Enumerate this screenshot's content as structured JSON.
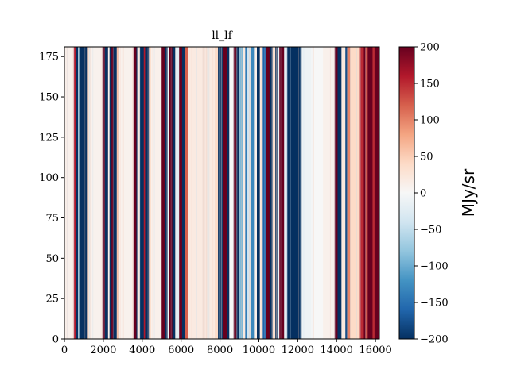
{
  "chart_data": {
    "type": "heatmap",
    "title": "ll_lf",
    "xlabel": "",
    "ylabel": "",
    "xlim": [
      0,
      16200
    ],
    "ylim": [
      0,
      181
    ],
    "x_ticks": [
      0,
      2000,
      4000,
      6000,
      8000,
      10000,
      12000,
      14000,
      16000
    ],
    "x_tick_labels": [
      "0",
      "2000",
      "4000",
      "6000",
      "8000",
      "10000",
      "12000",
      "14000",
      "16000"
    ],
    "y_ticks": [
      0,
      25,
      50,
      75,
      100,
      125,
      150,
      175
    ],
    "y_tick_labels": [
      "0",
      "25",
      "50",
      "75",
      "100",
      "125",
      "150",
      "175"
    ],
    "colormap": "RdBu_r",
    "colormap_stops": [
      "#053061",
      "#2166ac",
      "#4393c3",
      "#92c5de",
      "#d1e5f0",
      "#f7f7f7",
      "#fddbc7",
      "#f4a582",
      "#d6604d",
      "#b2182b",
      "#67001f"
    ],
    "colorbar": {
      "label": "MJy/sr",
      "range": [
        -200,
        200
      ],
      "ticks": [
        -200,
        -150,
        -100,
        -50,
        0,
        50,
        100,
        150,
        200
      ],
      "tick_labels": [
        "−200",
        "−150",
        "−100",
        "−50",
        "0",
        "50",
        "100",
        "150",
        "200"
      ]
    },
    "column_bands": [
      {
        "x": [
          0,
          480
        ],
        "value": 10
      },
      {
        "x": [
          480,
          590
        ],
        "value": 160
      },
      {
        "x": [
          590,
          700
        ],
        "value": -200
      },
      {
        "x": [
          700,
          760
        ],
        "value": -60
      },
      {
        "x": [
          760,
          1200
        ],
        "value": -200
      },
      {
        "x": [
          1200,
          1280
        ],
        "value": 40
      },
      {
        "x": [
          1280,
          1950
        ],
        "value": 8
      },
      {
        "x": [
          1950,
          2080
        ],
        "value": 200
      },
      {
        "x": [
          2080,
          2250
        ],
        "value": -200
      },
      {
        "x": [
          2250,
          2320
        ],
        "value": 10
      },
      {
        "x": [
          2320,
          2420
        ],
        "value": -200
      },
      {
        "x": [
          2420,
          2520
        ],
        "value": 200
      },
      {
        "x": [
          2520,
          2700
        ],
        "value": -200
      },
      {
        "x": [
          2700,
          2800
        ],
        "value": 60
      },
      {
        "x": [
          2800,
          3550
        ],
        "value": 8
      },
      {
        "x": [
          3550,
          3700
        ],
        "value": 200
      },
      {
        "x": [
          3700,
          3800
        ],
        "value": -200
      },
      {
        "x": [
          3800,
          3880
        ],
        "value": 20
      },
      {
        "x": [
          3880,
          4080
        ],
        "value": -200
      },
      {
        "x": [
          4080,
          4150
        ],
        "value": 160
      },
      {
        "x": [
          4150,
          4350
        ],
        "value": -200
      },
      {
        "x": [
          4350,
          4450
        ],
        "value": 40
      },
      {
        "x": [
          4450,
          5000
        ],
        "value": 10
      },
      {
        "x": [
          5000,
          5150
        ],
        "value": 200
      },
      {
        "x": [
          5150,
          5300
        ],
        "value": -200
      },
      {
        "x": [
          5300,
          5400
        ],
        "value": 0
      },
      {
        "x": [
          5400,
          5550
        ],
        "value": 200
      },
      {
        "x": [
          5550,
          5700
        ],
        "value": -200
      },
      {
        "x": [
          5700,
          5900
        ],
        "value": -20
      },
      {
        "x": [
          5900,
          6050
        ],
        "value": 200
      },
      {
        "x": [
          6050,
          6200
        ],
        "value": -200
      },
      {
        "x": [
          6200,
          6350
        ],
        "value": 120
      },
      {
        "x": [
          6350,
          7750
        ],
        "value": 18
      },
      {
        "x": [
          7750,
          7900
        ],
        "value": 40
      },
      {
        "x": [
          7900,
          8150
        ],
        "value": -200
      },
      {
        "x": [
          8150,
          8350
        ],
        "value": 200
      },
      {
        "x": [
          8350,
          8480
        ],
        "value": -200
      },
      {
        "x": [
          8480,
          8700
        ],
        "value": 0
      },
      {
        "x": [
          8700,
          8850
        ],
        "value": 200
      },
      {
        "x": [
          8850,
          9000
        ],
        "value": -200
      },
      {
        "x": [
          9000,
          9200
        ],
        "value": -90
      },
      {
        "x": [
          9200,
          9300
        ],
        "value": 20
      },
      {
        "x": [
          9300,
          9400
        ],
        "value": -140
      },
      {
        "x": [
          9400,
          9600
        ],
        "value": -40
      },
      {
        "x": [
          9600,
          9750
        ],
        "value": -130
      },
      {
        "x": [
          9750,
          9900
        ],
        "value": 10
      },
      {
        "x": [
          9900,
          10050
        ],
        "value": -200
      },
      {
        "x": [
          10050,
          10200
        ],
        "value": 20
      },
      {
        "x": [
          10200,
          10350
        ],
        "value": -160
      },
      {
        "x": [
          10350,
          10550
        ],
        "value": 200
      },
      {
        "x": [
          10550,
          10700
        ],
        "value": -200
      },
      {
        "x": [
          10700,
          10850
        ],
        "value": 30
      },
      {
        "x": [
          10850,
          10950
        ],
        "value": -200
      },
      {
        "x": [
          10950,
          11050
        ],
        "value": 0
      },
      {
        "x": [
          11050,
          11300
        ],
        "value": 200
      },
      {
        "x": [
          11300,
          11450
        ],
        "value": -20
      },
      {
        "x": [
          11450,
          12200
        ],
        "value": -200
      },
      {
        "x": [
          12200,
          12700
        ],
        "value": -10
      },
      {
        "x": [
          12700,
          13300
        ],
        "value": 0
      },
      {
        "x": [
          13300,
          13900
        ],
        "value": 10
      },
      {
        "x": [
          13900,
          14050
        ],
        "value": 200
      },
      {
        "x": [
          14050,
          14250
        ],
        "value": -200
      },
      {
        "x": [
          14250,
          14450
        ],
        "value": 20
      },
      {
        "x": [
          14450,
          14550
        ],
        "value": -180
      },
      {
        "x": [
          14550,
          14700
        ],
        "value": 100
      },
      {
        "x": [
          14700,
          15200
        ],
        "value": 40
      },
      {
        "x": [
          15200,
          15400
        ],
        "value": 150
      },
      {
        "x": [
          15400,
          15500
        ],
        "value": 200
      },
      {
        "x": [
          15500,
          15600
        ],
        "value": 130
      },
      {
        "x": [
          15600,
          15850
        ],
        "value": 200
      },
      {
        "x": [
          15850,
          15950
        ],
        "value": 150
      },
      {
        "x": [
          15950,
          16200
        ],
        "value": 200
      }
    ]
  }
}
